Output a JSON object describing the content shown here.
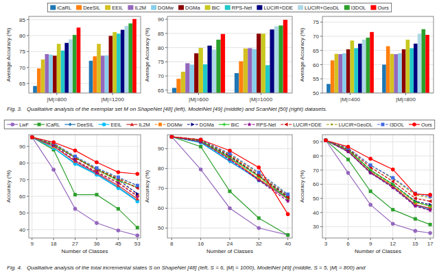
{
  "chart_data": [
    {
      "type": "bar",
      "ylabel": "Average Accuracy (%)",
      "categories": [
        "|M|=800",
        "|M|=1200"
      ],
      "ylim": [
        62,
        86
      ],
      "yticks": [
        65,
        70,
        75,
        80,
        85
      ],
      "grid": true,
      "legend": "top",
      "annotations": [
        "Fig. 3.   Qualitative analysis of the exemplar set M on ShapeNet [48] (left), ModelNet [49] (middle) and ScanNet [50] (right) datasets."
      ],
      "series": [
        {
          "name": "iCaRL",
          "color": "#1f77b4",
          "values": [
            64.2,
            72.1
          ]
        },
        {
          "name": "DeeSIL",
          "color": "#ff7f0e",
          "values": [
            69.7,
            73.5
          ]
        },
        {
          "name": "EEIL",
          "color": "#d4c020",
          "values": [
            72.5,
            77.4
          ]
        },
        {
          "name": "IL2M",
          "color": "#9467bd",
          "values": [
            74.2,
            73.7
          ]
        },
        {
          "name": "DGMw",
          "color": "#87ceeb",
          "values": [
            74.0,
            73.8
          ]
        },
        {
          "name": "DGMa",
          "color": "#8b0000",
          "values": [
            73.7,
            79.9
          ]
        },
        {
          "name": "BiC",
          "color": "#c8c820",
          "values": [
            77.4,
            81.1
          ]
        },
        {
          "name": "RPS-Net",
          "color": "#20c8c8",
          "values": [
            75.3,
            80.6
          ]
        },
        {
          "name": "LUCIR+DDE",
          "color": "#000080",
          "values": [
            77.7,
            81.8
          ]
        },
        {
          "name": "LUCIR+GeoDL",
          "color": "#add8e6",
          "values": [
            78.8,
            83.0
          ]
        },
        {
          "name": "I3DOL",
          "color": "#2ca02c",
          "values": [
            80.2,
            83.8
          ]
        },
        {
          "name": "Ours",
          "color": "#ff0000",
          "values": [
            82.5,
            85.2
          ]
        }
      ]
    },
    {
      "type": "bar",
      "ylabel": "Average Accuracy (%)",
      "categories": [
        "|M|=600",
        "|M|=1000"
      ],
      "ylim": [
        64,
        91
      ],
      "yticks": [
        65,
        70,
        75,
        80,
        85,
        90
      ],
      "grid": true,
      "series": [
        {
          "name": "iCaRL",
          "color": "#1f77b4",
          "values": [
            65.8,
            71.0
          ]
        },
        {
          "name": "DeeSIL",
          "color": "#ff7f0e",
          "values": [
            69.0,
            75.2
          ]
        },
        {
          "name": "EEIL",
          "color": "#d4c020",
          "values": [
            71.5,
            79.7
          ]
        },
        {
          "name": "IL2M",
          "color": "#9467bd",
          "values": [
            74.5,
            79.8
          ]
        },
        {
          "name": "DGMw",
          "color": "#87ceeb",
          "values": [
            74.0,
            79.5
          ]
        },
        {
          "name": "DGMa",
          "color": "#8b0000",
          "values": [
            78.0,
            84.9
          ]
        },
        {
          "name": "BiC",
          "color": "#c8c820",
          "values": [
            79.9,
            84.9
          ]
        },
        {
          "name": "RPS-Net",
          "color": "#20c8c8",
          "values": [
            74.1,
            73.8
          ]
        },
        {
          "name": "LUCIR+DDE",
          "color": "#000080",
          "values": [
            80.7,
            86.4
          ]
        },
        {
          "name": "LUCIR+GeoDL",
          "color": "#add8e6",
          "values": [
            79.3,
            87.5
          ]
        },
        {
          "name": "I3DOL",
          "color": "#2ca02c",
          "values": [
            82.8,
            87.8
          ]
        },
        {
          "name": "Ours",
          "color": "#ff0000",
          "values": [
            84.8,
            89.8
          ]
        }
      ]
    },
    {
      "type": "bar",
      "ylabel": "Average Accuracy (%)",
      "categories": [
        "|M|=400",
        "|M|=800"
      ],
      "ylim": [
        50,
        77
      ],
      "yticks": [
        50,
        55,
        60,
        65,
        70,
        75
      ],
      "grid": true,
      "series": [
        {
          "name": "iCaRL",
          "color": "#1f77b4",
          "values": [
            53.2,
            60.0
          ]
        },
        {
          "name": "DeeSIL",
          "color": "#ff7f0e",
          "values": [
            61.5,
            66.5
          ]
        },
        {
          "name": "EEIL",
          "color": "#d4c020",
          "values": [
            63.8,
            63.8
          ]
        },
        {
          "name": "IL2M",
          "color": "#9467bd",
          "values": [
            63.7,
            63.7
          ]
        },
        {
          "name": "DGMw",
          "color": "#87ceeb",
          "values": [
            64.0,
            64.0
          ]
        },
        {
          "name": "DGMa",
          "color": "#8b0000",
          "values": [
            65.4,
            65.4
          ]
        },
        {
          "name": "BiC",
          "color": "#c8c820",
          "values": [
            68.5,
            68.8
          ]
        },
        {
          "name": "RPS-Net",
          "color": "#20c8c8",
          "values": [
            65.8,
            65.8
          ]
        },
        {
          "name": "LUCIR+DDE",
          "color": "#000080",
          "values": [
            67.4,
            67.4
          ]
        },
        {
          "name": "LUCIR+GeoDL",
          "color": "#add8e6",
          "values": [
            68.8,
            70.9
          ]
        },
        {
          "name": "I3DOL",
          "color": "#2ca02c",
          "values": [
            69.5,
            72.5
          ]
        },
        {
          "name": "Ours",
          "color": "#ff0000",
          "values": [
            71.5,
            70.5
          ]
        }
      ]
    },
    {
      "type": "line",
      "xlabel": "Number of Classes",
      "ylabel": "Accuracy (%)",
      "x": [
        9,
        18,
        27,
        36,
        45,
        53
      ],
      "xlim": [
        7.65,
        54.35
      ],
      "xticks": [
        9,
        18,
        27,
        36,
        45,
        53
      ],
      "ylim": [
        35,
        97
      ],
      "yticks": [
        40,
        50,
        60,
        70,
        80,
        90
      ],
      "grid": true,
      "legend": "top",
      "annotations": [
        "Fig. 4.   Qualitative analysis of the total incremental states S on ShapeNet [48] (left, S = 6, |M| = 1000), ModelNet [49] (middle, S = 5, |M| = 800) and"
      ],
      "series": [
        {
          "name": "LwF",
          "color": "#9467bd",
          "marker": "circle",
          "line_style": "solid",
          "values": [
            95.5,
            76.0,
            52.5,
            44.0,
            39.5,
            36.5
          ]
        },
        {
          "name": "iCaRL",
          "color": "#2ca02c",
          "marker": "square",
          "line_style": "solid",
          "values": [
            95.5,
            88.0,
            61.0,
            61.0,
            52.5,
            41.2
          ]
        },
        {
          "name": "DeeSIL",
          "color": "#1f77b4",
          "marker": "diamond",
          "line_style": "solid",
          "values": [
            95.5,
            89.0,
            80.0,
            73.5,
            65.5,
            57.5
          ]
        },
        {
          "name": "EEIL",
          "color": "#00bfff",
          "marker": "circle",
          "line_style": "solid",
          "values": [
            95.5,
            89.0,
            79.5,
            73.0,
            65.0,
            57.0
          ]
        },
        {
          "name": "IL2M",
          "color": "#d62728",
          "marker": "triangle-up",
          "line_style": "solid",
          "values": [
            95.5,
            90.0,
            81.0,
            74.0,
            66.5,
            58.5
          ]
        },
        {
          "name": "DGMw",
          "color": "#ff7f0e",
          "marker": "square",
          "line_style": "dashed",
          "values": [
            95.5,
            90.0,
            81.5,
            75.0,
            68.5,
            60.5
          ]
        },
        {
          "name": "DGMa",
          "color": "#000080",
          "marker": "triangle-right",
          "line_style": "dashed",
          "values": [
            95.5,
            91.0,
            83.0,
            76.5,
            70.0,
            61.5
          ]
        },
        {
          "name": "BiC",
          "color": "#20c820",
          "marker": "plus",
          "line_style": "solid",
          "values": [
            95.5,
            91.0,
            83.5,
            76.0,
            69.5,
            65.5
          ]
        },
        {
          "name": "RPS-Net",
          "color": "#8b008b",
          "marker": "star",
          "line_style": "dashed",
          "values": [
            95.5,
            90.5,
            81.5,
            74.5,
            68.0,
            60.0
          ]
        },
        {
          "name": "LUCIR+DDE",
          "color": "#cc0000",
          "marker": "triangle-left",
          "line_style": "dashed",
          "values": [
            95.5,
            91.5,
            83.0,
            76.0,
            70.5,
            65.0
          ]
        },
        {
          "name": "LUCIR+GeoDL",
          "color": "#999900",
          "marker": "point",
          "line_style": "dashed",
          "values": [
            95.5,
            91.5,
            83.5,
            76.5,
            71.0,
            66.5
          ]
        },
        {
          "name": "I3DOL",
          "color": "#4169e1",
          "marker": "square",
          "line_style": "dashed",
          "values": [
            95.5,
            92.0,
            84.0,
            77.0,
            71.5,
            66.5
          ]
        },
        {
          "name": "Ours",
          "color": "#ff0000",
          "marker": "circle",
          "line_style": "solid",
          "values": [
            95.5,
            92.5,
            87.5,
            80.5,
            74.5,
            73.5
          ]
        }
      ]
    },
    {
      "type": "line",
      "xlabel": "Number of Classes",
      "ylabel": "Accuracy (%)",
      "x": [
        8,
        16,
        24,
        32,
        40
      ],
      "xlim": [
        6.8,
        41.2
      ],
      "xticks": [
        8,
        16,
        24,
        32,
        40
      ],
      "ylim": [
        45,
        97
      ],
      "yticks": [
        50,
        60,
        70,
        80,
        90
      ],
      "grid": true,
      "series": [
        {
          "name": "LwF",
          "color": "#9467bd",
          "marker": "circle",
          "line_style": "solid",
          "values": [
            96.0,
            79.5,
            60.0,
            50.0,
            46.5
          ]
        },
        {
          "name": "iCaRL",
          "color": "#2ca02c",
          "marker": "square",
          "line_style": "solid",
          "values": [
            96.0,
            91.0,
            68.5,
            55.0,
            46.5
          ]
        },
        {
          "name": "DeeSIL",
          "color": "#1f77b4",
          "marker": "diamond",
          "line_style": "solid",
          "values": [
            96.0,
            93.0,
            83.5,
            74.5,
            65.0
          ]
        },
        {
          "name": "EEIL",
          "color": "#00bfff",
          "marker": "circle",
          "line_style": "solid",
          "values": [
            96.0,
            93.0,
            84.0,
            74.0,
            65.0
          ]
        },
        {
          "name": "IL2M",
          "color": "#d62728",
          "marker": "triangle-up",
          "line_style": "solid",
          "values": [
            96.0,
            93.5,
            85.0,
            74.5,
            64.5
          ]
        },
        {
          "name": "DGMw",
          "color": "#ff7f0e",
          "marker": "square",
          "line_style": "dashed",
          "values": [
            96.0,
            94.0,
            85.0,
            75.0,
            65.5
          ]
        },
        {
          "name": "DGMa",
          "color": "#000080",
          "marker": "triangle-right",
          "line_style": "dashed",
          "values": [
            96.0,
            94.0,
            86.0,
            76.5,
            66.0
          ]
        },
        {
          "name": "BiC",
          "color": "#20c820",
          "marker": "plus",
          "line_style": "solid",
          "values": [
            96.0,
            94.0,
            85.5,
            76.0,
            65.0
          ]
        },
        {
          "name": "RPS-Net",
          "color": "#8b008b",
          "marker": "star",
          "line_style": "dashed",
          "values": [
            96.0,
            93.5,
            84.5,
            74.0,
            63.5
          ]
        },
        {
          "name": "LUCIR+DDE",
          "color": "#cc0000",
          "marker": "triangle-left",
          "line_style": "dashed",
          "values": [
            96.0,
            94.5,
            86.5,
            76.5,
            65.5
          ]
        },
        {
          "name": "LUCIR+GeoDL",
          "color": "#999900",
          "marker": "point",
          "line_style": "dashed",
          "values": [
            96.0,
            94.5,
            87.0,
            77.5,
            66.5
          ]
        },
        {
          "name": "I3DOL",
          "color": "#4169e1",
          "marker": "square",
          "line_style": "dashed",
          "values": [
            96.0,
            94.5,
            87.5,
            78.0,
            67.0
          ]
        },
        {
          "name": "Ours",
          "color": "#ff0000",
          "marker": "circle",
          "line_style": "solid",
          "values": [
            96.0,
            94.5,
            89.0,
            80.5,
            57.0
          ]
        }
      ]
    },
    {
      "type": "line",
      "xlabel": "Number of Classes",
      "ylabel": "Accuracy (%)",
      "x": [
        3,
        6,
        9,
        12,
        15,
        17
      ],
      "xlim": [
        2.55,
        17.45
      ],
      "xticks": [
        3,
        6,
        9,
        12,
        15,
        17
      ],
      "ylim": [
        22,
        95
      ],
      "yticks": [
        30,
        40,
        50,
        60,
        70,
        80,
        90
      ],
      "grid": true,
      "series": [
        {
          "name": "LwF",
          "color": "#9467bd",
          "marker": "circle",
          "line_style": "solid",
          "values": [
            91.0,
            68.0,
            45.5,
            32.0,
            27.0,
            25.5
          ]
        },
        {
          "name": "iCaRL",
          "color": "#2ca02c",
          "marker": "square",
          "line_style": "solid",
          "values": [
            91.0,
            77.5,
            55.0,
            42.0,
            35.5,
            31.5
          ]
        },
        {
          "name": "DeeSIL",
          "color": "#1f77b4",
          "marker": "diamond",
          "line_style": "solid",
          "values": [
            91.0,
            83.0,
            68.0,
            58.0,
            45.0,
            42.0
          ]
        },
        {
          "name": "EEIL",
          "color": "#00bfff",
          "marker": "circle",
          "line_style": "solid",
          "values": [
            91.0,
            83.5,
            68.5,
            58.5,
            45.5,
            43.0
          ]
        },
        {
          "name": "IL2M",
          "color": "#d62728",
          "marker": "triangle-up",
          "line_style": "solid",
          "values": [
            91.0,
            83.5,
            68.5,
            58.5,
            45.5,
            43.0
          ]
        },
        {
          "name": "DGMw",
          "color": "#ff7f0e",
          "marker": "square",
          "line_style": "dashed",
          "values": [
            91.0,
            84.0,
            69.5,
            59.0,
            47.0,
            44.5
          ]
        },
        {
          "name": "DGMa",
          "color": "#000080",
          "marker": "triangle-right",
          "line_style": "dashed",
          "values": [
            91.0,
            84.5,
            70.0,
            60.0,
            48.0,
            45.5
          ]
        },
        {
          "name": "BiC",
          "color": "#20c820",
          "marker": "plus",
          "line_style": "solid",
          "values": [
            91.0,
            84.5,
            70.0,
            60.0,
            47.5,
            44.5
          ]
        },
        {
          "name": "RPS-Net",
          "color": "#8b008b",
          "marker": "star",
          "line_style": "dashed",
          "values": [
            91.0,
            83.0,
            68.0,
            57.5,
            44.5,
            41.5
          ]
        },
        {
          "name": "LUCIR+DDE",
          "color": "#cc0000",
          "marker": "triangle-left",
          "line_style": "dashed",
          "values": [
            91.0,
            85.0,
            72.0,
            62.0,
            50.0,
            48.0
          ]
        },
        {
          "name": "LUCIR+GeoDL",
          "color": "#999900",
          "marker": "point",
          "line_style": "dashed",
          "values": [
            91.0,
            85.5,
            73.5,
            64.0,
            52.5,
            50.5
          ]
        },
        {
          "name": "I3DOL",
          "color": "#4169e1",
          "marker": "square",
          "line_style": "dashed",
          "values": [
            91.0,
            85.5,
            73.5,
            64.5,
            53.5,
            51.5
          ]
        },
        {
          "name": "Ours",
          "color": "#ff0000",
          "marker": "circle",
          "line_style": "solid",
          "values": [
            91.0,
            86.5,
            78.0,
            70.5,
            53.0,
            52.5
          ]
        }
      ]
    }
  ]
}
